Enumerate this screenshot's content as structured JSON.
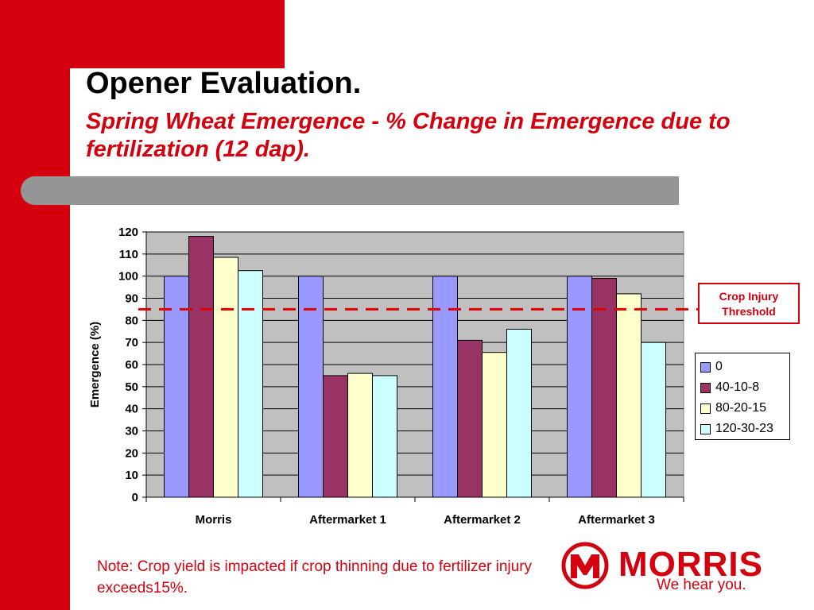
{
  "slide": {
    "title": "Opener Evaluation.",
    "subtitle": "Spring Wheat Emergence - % Change in Emergence due to fertilization (12 dap).",
    "note": "Note: Crop yield is impacted if crop thinning due to fertilizer injury exceeds15%.",
    "threshold_label_line1": "Crop Injury",
    "threshold_label_line2": "Threshold",
    "logo_text": "MORRIS",
    "logo_tagline": "We hear you."
  },
  "colors": {
    "brand_red": "#d4000d",
    "plot_bg": "#c0c0c0",
    "divider_gray": "#959595"
  },
  "chart_data": {
    "type": "bar",
    "title": "",
    "xlabel": "",
    "ylabel": "Emergence (%)",
    "ylim": [
      0,
      120
    ],
    "yticks": [
      0,
      10,
      20,
      30,
      40,
      50,
      60,
      70,
      80,
      90,
      100,
      110,
      120
    ],
    "grid": true,
    "legend_position": "right",
    "categories": [
      "Morris",
      "Aftermarket 1",
      "Aftermarket 2",
      "Aftermarket 3"
    ],
    "series": [
      {
        "name": "0",
        "color": "#9999ff",
        "values": [
          100,
          100,
          100,
          100
        ]
      },
      {
        "name": "40-10-8",
        "color": "#993366",
        "values": [
          118,
          55,
          71,
          99
        ]
      },
      {
        "name": "80-20-15",
        "color": "#ffffcc",
        "values": [
          108.5,
          56,
          65.5,
          92
        ]
      },
      {
        "name": "120-30-23",
        "color": "#ccffff",
        "values": [
          102.5,
          55,
          76,
          70
        ]
      }
    ],
    "threshold": {
      "value": 85,
      "color": "#e00000"
    }
  }
}
